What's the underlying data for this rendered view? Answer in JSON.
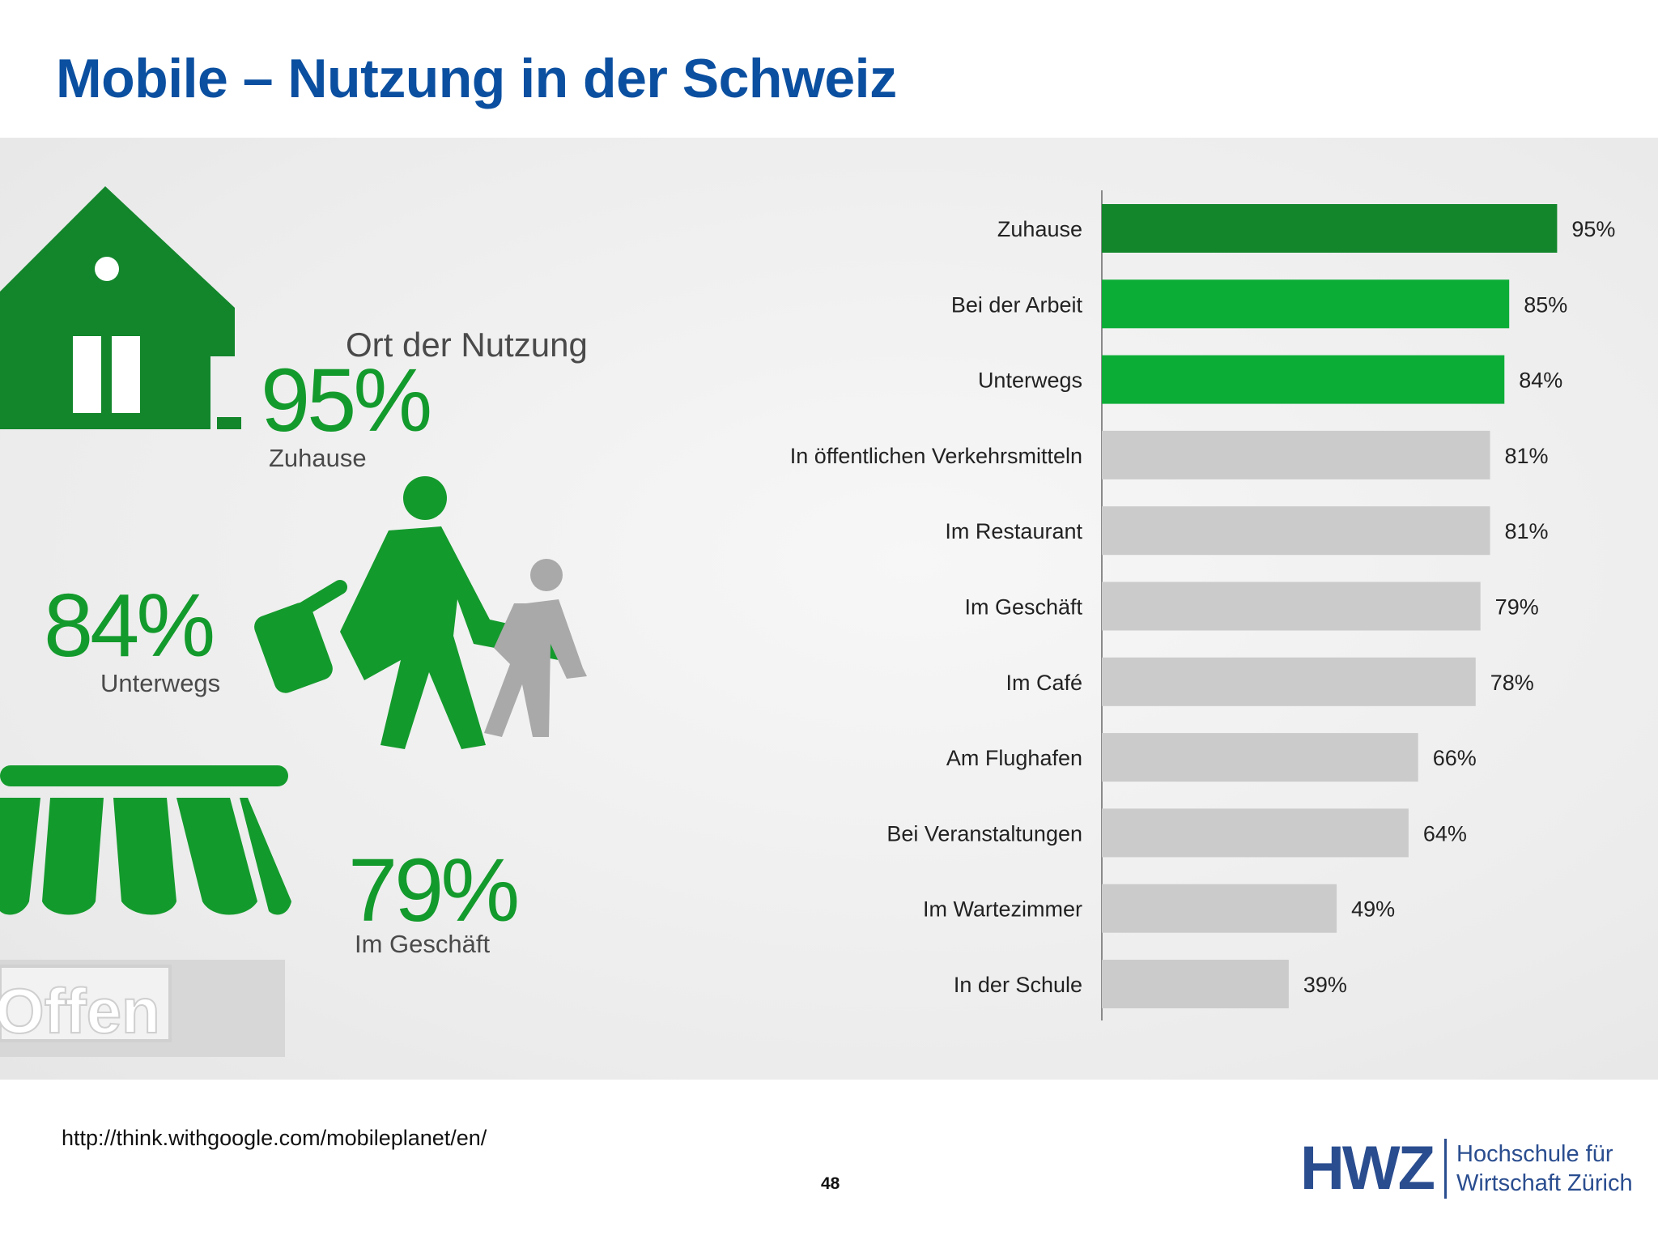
{
  "slide": {
    "title": "Mobile – Nutzung in der Schweiz",
    "source": "http://think.withgoogle.com/mobileplanet/en/",
    "page_number": "48"
  },
  "infographic": {
    "heading": "Ort der Nutzung",
    "highlights": [
      {
        "value": "95%",
        "label": "Zuhause",
        "icon": "house-icon"
      },
      {
        "value": "84%",
        "label": "Unterwegs",
        "icon": "walking-people-icon"
      },
      {
        "value": "79%",
        "label": "Im Geschäft",
        "icon": "storefront-icon"
      }
    ],
    "shop_sign": "Offen"
  },
  "logo": {
    "mark": "HWZ",
    "line1": "Hochschule für",
    "line2": "Wirtschaft Zürich"
  },
  "colors": {
    "title": "#0b4fa0",
    "bar_dark_green": "#13862c",
    "bar_green": "#0cad37",
    "bar_grey": "#cbcbcb",
    "icon_green": "#139a2c",
    "icon_grey": "#a9a9a9"
  },
  "chart_data": {
    "type": "bar",
    "orientation": "horizontal",
    "title": "Ort der Nutzung",
    "categories": [
      "Zuhause",
      "Bei der Arbeit",
      "Unterwegs",
      "In öffentlichen Verkehrsmitteln",
      "Im Restaurant",
      "Im Geschäft",
      "Im Café",
      "Am Flughafen",
      "Bei Veranstaltungen",
      "Im Wartezimmer",
      "In der Schule"
    ],
    "values": [
      95,
      85,
      84,
      81,
      81,
      79,
      78,
      66,
      64,
      49,
      39
    ],
    "value_labels": [
      "95%",
      "85%",
      "84%",
      "81%",
      "81%",
      "79%",
      "78%",
      "66%",
      "64%",
      "49%",
      "39%"
    ],
    "bar_colors": [
      "#13862c",
      "#0cad37",
      "#0cad37",
      "#cbcbcb",
      "#cbcbcb",
      "#cbcbcb",
      "#cbcbcb",
      "#cbcbcb",
      "#cbcbcb",
      "#cbcbcb",
      "#cbcbcb"
    ],
    "xlim": [
      0,
      100
    ],
    "unit": "%",
    "grid": false,
    "legend": false
  }
}
